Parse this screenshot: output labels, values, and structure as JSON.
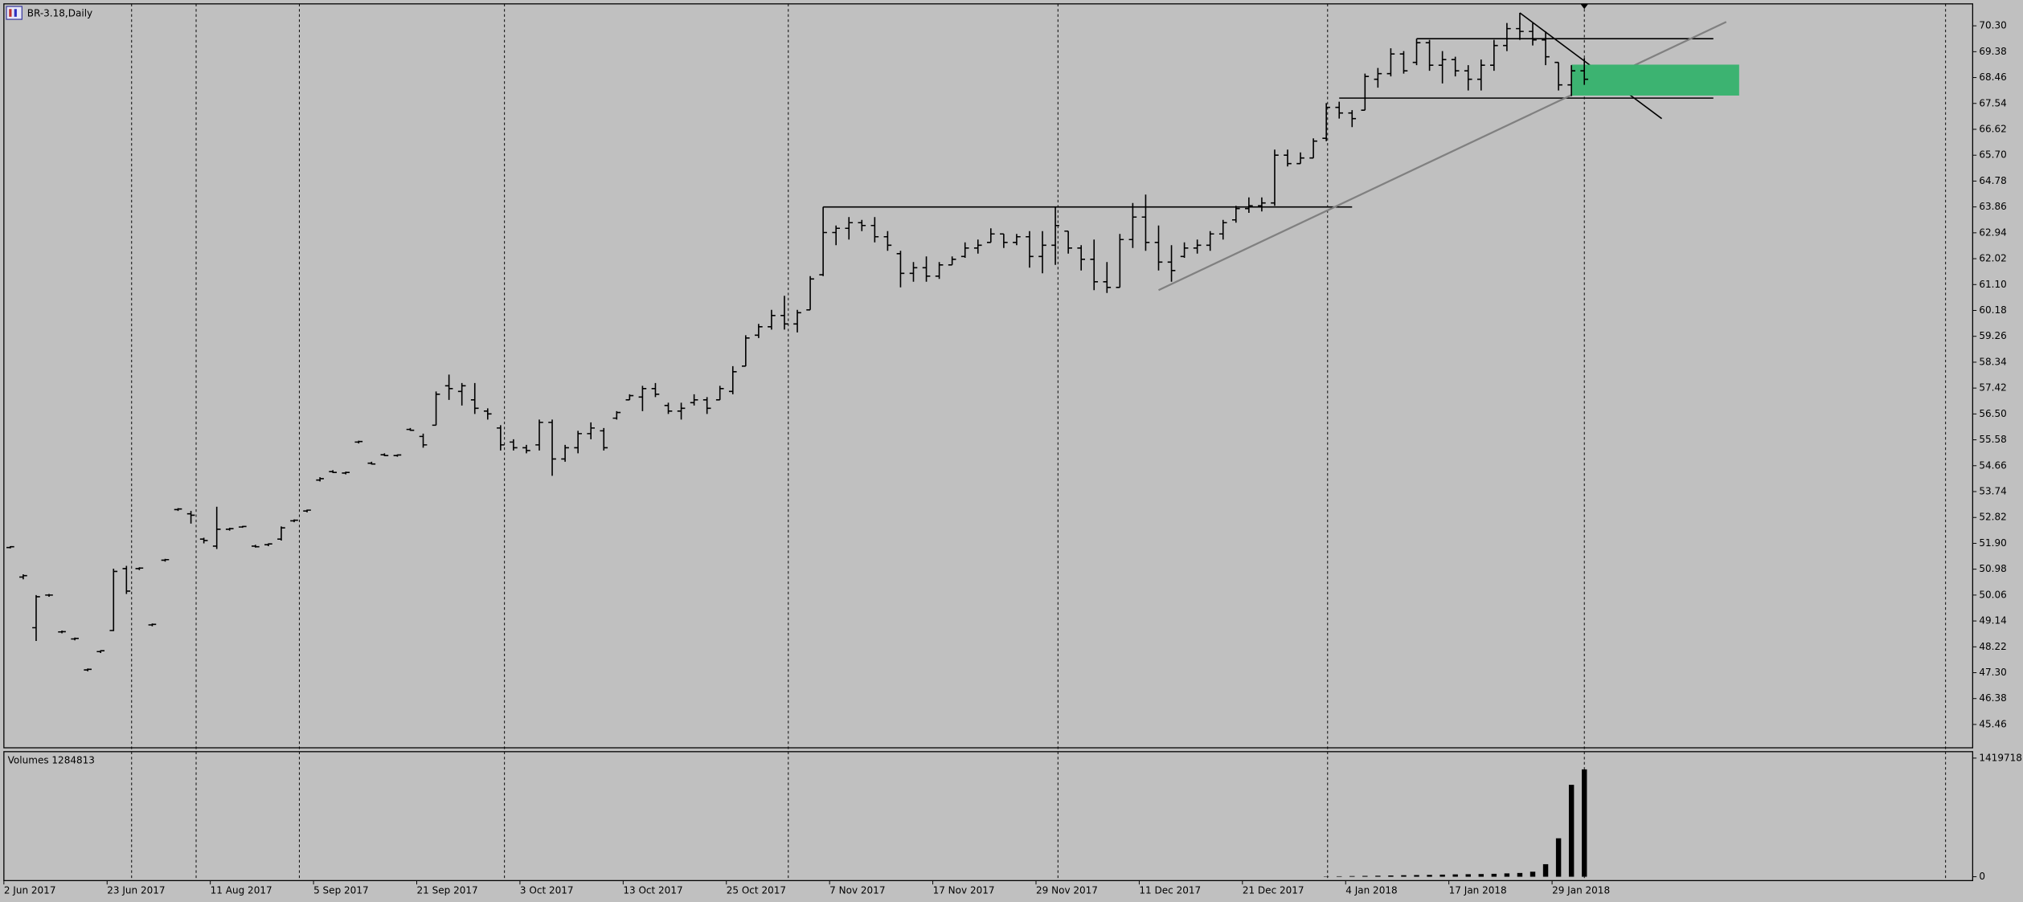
{
  "chart_data": {
    "type": "ohlc",
    "title": "BR-3.18,Daily",
    "color": "#000000",
    "categories": [
      "2 Jun 2017",
      null,
      null,
      null,
      null,
      null,
      null,
      null,
      "23 Jun 2017",
      null,
      null,
      null,
      null,
      null,
      null,
      null,
      "11 Aug 2017",
      null,
      null,
      null,
      null,
      null,
      null,
      null,
      "5 Sep 2017",
      null,
      null,
      null,
      null,
      null,
      null,
      null,
      "21 Sep 2017",
      null,
      null,
      null,
      null,
      null,
      null,
      null,
      "3 Oct 2017",
      null,
      null,
      null,
      null,
      null,
      null,
      null,
      "13 Oct 2017",
      null,
      null,
      null,
      null,
      null,
      null,
      null,
      "25 Oct 2017",
      null,
      null,
      null,
      null,
      null,
      null,
      null,
      "7 Nov 2017",
      null,
      null,
      null,
      null,
      null,
      null,
      null,
      "17 Nov 2017",
      null,
      null,
      null,
      null,
      null,
      null,
      null,
      "29 Nov 2017",
      null,
      null,
      null,
      null,
      null,
      null,
      null,
      "11 Dec 2017",
      null,
      null,
      null,
      null,
      null,
      null,
      null,
      "21 Dec 2017",
      null,
      null,
      null,
      null,
      null,
      null,
      null,
      "4 Jan 2018",
      null,
      null,
      null,
      null,
      null,
      null,
      null,
      "17 Jan 2018",
      null,
      null,
      null,
      null,
      null,
      null,
      null,
      "29 Jan 2018",
      null,
      null
    ],
    "ohlc": [
      [
        51.75,
        51.8,
        51.72,
        51.78
      ],
      [
        50.7,
        50.8,
        50.62,
        50.75
      ],
      [
        48.9,
        50.06,
        48.43,
        50.0
      ],
      [
        50.06,
        50.1,
        50.0,
        50.06
      ],
      [
        48.75,
        48.8,
        48.7,
        48.76
      ],
      [
        48.5,
        48.55,
        48.45,
        48.52
      ],
      [
        47.4,
        47.45,
        47.35,
        47.42
      ],
      [
        48.05,
        48.1,
        48.0,
        48.08
      ],
      [
        48.8,
        51.0,
        48.78,
        50.9
      ],
      [
        51.0,
        51.1,
        50.1,
        50.2
      ],
      [
        51.0,
        51.05,
        50.95,
        51.02
      ],
      [
        49.0,
        49.05,
        48.95,
        49.02
      ],
      [
        51.3,
        51.35,
        51.25,
        51.32
      ],
      [
        53.1,
        53.15,
        53.05,
        53.12
      ],
      [
        52.95,
        53.05,
        52.6,
        52.9
      ],
      [
        52.05,
        52.1,
        51.9,
        52.0
      ],
      [
        51.8,
        53.2,
        51.7,
        52.4
      ],
      [
        52.4,
        52.45,
        52.35,
        52.42
      ],
      [
        52.48,
        52.52,
        52.45,
        52.5
      ],
      [
        51.8,
        51.85,
        51.75,
        51.78
      ],
      [
        51.85,
        51.9,
        51.8,
        51.88
      ],
      [
        52.05,
        52.5,
        52.0,
        52.45
      ],
      [
        52.7,
        52.75,
        52.65,
        52.72
      ],
      [
        53.05,
        53.1,
        53.0,
        53.08
      ],
      [
        54.15,
        54.25,
        54.1,
        54.2
      ],
      [
        54.45,
        54.5,
        54.4,
        54.42
      ],
      [
        54.4,
        54.45,
        54.35,
        54.42
      ],
      [
        55.5,
        55.55,
        55.45,
        55.52
      ],
      [
        54.75,
        54.8,
        54.7,
        54.72
      ],
      [
        55.05,
        55.1,
        55.0,
        55.02
      ],
      [
        55.02,
        55.06,
        54.98,
        55.04
      ],
      [
        55.95,
        56.0,
        55.9,
        55.92
      ],
      [
        55.7,
        55.8,
        55.3,
        55.4
      ],
      [
        56.1,
        57.3,
        56.1,
        57.2
      ],
      [
        57.5,
        57.9,
        57.0,
        57.4
      ],
      [
        57.3,
        57.6,
        56.8,
        57.5
      ],
      [
        57.0,
        57.6,
        56.5,
        56.7
      ],
      [
        56.6,
        56.7,
        56.3,
        56.5
      ],
      [
        56.0,
        56.1,
        55.2,
        55.4
      ],
      [
        55.5,
        55.6,
        55.2,
        55.3
      ],
      [
        55.3,
        55.4,
        55.1,
        55.2
      ],
      [
        55.4,
        56.3,
        55.2,
        56.2
      ],
      [
        56.2,
        56.3,
        54.3,
        54.9
      ],
      [
        54.9,
        55.4,
        54.8,
        55.3
      ],
      [
        55.3,
        55.9,
        55.1,
        55.8
      ],
      [
        55.8,
        56.2,
        55.6,
        56.0
      ],
      [
        55.9,
        56.0,
        55.2,
        55.3
      ],
      [
        56.35,
        56.6,
        56.3,
        56.55
      ],
      [
        57.0,
        57.2,
        57.0,
        57.15
      ],
      [
        57.1,
        57.5,
        56.6,
        57.4
      ],
      [
        57.4,
        57.6,
        57.1,
        57.2
      ],
      [
        56.8,
        56.9,
        56.5,
        56.6
      ],
      [
        56.6,
        56.9,
        56.3,
        56.7
      ],
      [
        56.9,
        57.2,
        56.8,
        57.0
      ],
      [
        57.0,
        57.1,
        56.5,
        56.7
      ],
      [
        57.0,
        57.5,
        57.0,
        57.4
      ],
      [
        57.3,
        58.2,
        57.2,
        58.0
      ],
      [
        58.2,
        59.3,
        58.2,
        59.2
      ],
      [
        59.3,
        59.7,
        59.2,
        59.6
      ],
      [
        59.6,
        60.2,
        59.5,
        60.0
      ],
      [
        60.0,
        60.7,
        59.5,
        59.7
      ],
      [
        59.7,
        60.2,
        59.4,
        60.1
      ],
      [
        60.2,
        61.4,
        60.2,
        61.3
      ],
      [
        61.45,
        63.86,
        61.4,
        62.95
      ],
      [
        62.95,
        63.2,
        62.5,
        63.1
      ],
      [
        63.1,
        63.5,
        62.7,
        63.3
      ],
      [
        63.3,
        63.4,
        63.0,
        63.2
      ],
      [
        63.2,
        63.5,
        62.6,
        62.8
      ],
      [
        62.8,
        63.0,
        62.3,
        62.5
      ],
      [
        62.2,
        62.3,
        61.0,
        61.5
      ],
      [
        61.5,
        61.9,
        61.2,
        61.7
      ],
      [
        61.7,
        62.1,
        61.2,
        61.4
      ],
      [
        61.4,
        61.9,
        61.3,
        61.8
      ],
      [
        61.8,
        62.1,
        61.8,
        62.0
      ],
      [
        62.1,
        62.6,
        62.05,
        62.4
      ],
      [
        62.4,
        62.7,
        62.2,
        62.5
      ],
      [
        62.6,
        63.1,
        62.6,
        62.9
      ],
      [
        62.9,
        62.9,
        62.4,
        62.6
      ],
      [
        62.6,
        62.9,
        62.5,
        62.8
      ],
      [
        62.8,
        63.0,
        61.7,
        62.1
      ],
      [
        62.1,
        63.0,
        61.5,
        62.5
      ],
      [
        62.5,
        63.86,
        61.8,
        63.2
      ],
      [
        63.0,
        63.0,
        62.2,
        62.4
      ],
      [
        62.4,
        62.5,
        61.6,
        62.0
      ],
      [
        62.0,
        62.7,
        60.9,
        61.2
      ],
      [
        61.2,
        61.9,
        60.8,
        61.0
      ],
      [
        61.0,
        62.9,
        61.0,
        62.7
      ],
      [
        62.7,
        64.0,
        62.4,
        63.5
      ],
      [
        63.5,
        64.3,
        62.3,
        62.6
      ],
      [
        62.6,
        63.2,
        61.6,
        61.9
      ],
      [
        61.9,
        62.5,
        61.2,
        61.6
      ],
      [
        62.1,
        62.6,
        62.05,
        62.4
      ],
      [
        62.4,
        62.7,
        62.2,
        62.5
      ],
      [
        62.5,
        63.0,
        62.3,
        62.9
      ],
      [
        62.9,
        63.4,
        62.7,
        63.3
      ],
      [
        63.4,
        63.9,
        63.3,
        63.8
      ],
      [
        63.8,
        64.2,
        63.65,
        63.9
      ],
      [
        63.9,
        64.2,
        63.7,
        64.0
      ],
      [
        64.0,
        65.9,
        63.9,
        65.7
      ],
      [
        65.7,
        65.9,
        65.3,
        65.4
      ],
      [
        65.4,
        65.8,
        65.4,
        65.6
      ],
      [
        65.6,
        66.3,
        65.6,
        66.2
      ],
      [
        66.3,
        67.55,
        66.2,
        67.4
      ],
      [
        67.4,
        67.6,
        67.0,
        67.2
      ],
      [
        67.2,
        67.3,
        66.7,
        67.0
      ],
      [
        67.3,
        68.6,
        67.3,
        68.5
      ],
      [
        68.4,
        68.8,
        68.1,
        68.6
      ],
      [
        68.6,
        69.5,
        68.5,
        69.3
      ],
      [
        69.3,
        69.4,
        68.6,
        68.7
      ],
      [
        69.0,
        69.84,
        68.9,
        69.7
      ],
      [
        69.7,
        69.8,
        68.7,
        68.9
      ],
      [
        68.9,
        69.4,
        68.25,
        69.1
      ],
      [
        69.1,
        69.2,
        68.5,
        68.7
      ],
      [
        68.7,
        68.9,
        68.0,
        68.4
      ],
      [
        68.4,
        69.1,
        68.0,
        68.9
      ],
      [
        68.9,
        69.8,
        68.7,
        69.6
      ],
      [
        69.6,
        70.4,
        69.4,
        70.2
      ],
      [
        70.2,
        70.76,
        69.8,
        70.1
      ],
      [
        70.1,
        70.4,
        69.6,
        69.8
      ],
      [
        69.8,
        70.1,
        68.9,
        69.2
      ],
      [
        69.0,
        69.0,
        68.0,
        68.2
      ],
      [
        68.2,
        68.9,
        67.8,
        68.7
      ],
      [
        68.7,
        69.15,
        68.2,
        68.4
      ]
    ],
    "ylim": [
      44.63,
      71.08
    ],
    "yticks": [
      45.46,
      46.38,
      {
        "value": 47.3,
        "label": "47.30"
      },
      48.22,
      49.14,
      50.06,
      50.98,
      {
        "value": 51.9,
        "label": "51.90"
      },
      52.82,
      53.74,
      54.66,
      55.58,
      {
        "value": 56.5,
        "label": "56.50"
      },
      57.42,
      58.34,
      59.26,
      60.18,
      {
        "value": 61.1,
        "label": "61.10"
      },
      62.02,
      62.94,
      63.86,
      64.78,
      {
        "value": 65.7,
        "label": "65.70"
      },
      66.62,
      67.54,
      68.46,
      69.38,
      {
        "value": 70.3,
        "label": "70.30"
      }
    ],
    "drawings": [
      {
        "kind": "segment",
        "color": "#000000",
        "from": [
          63,
          63.86
        ],
        "to": [
          104,
          63.86
        ]
      },
      {
        "kind": "segment",
        "color": "#000000",
        "from": [
          109,
          69.84
        ],
        "to": [
          132,
          69.84
        ]
      },
      {
        "kind": "segment",
        "color": "#000000",
        "from": [
          103,
          67.73
        ],
        "to": [
          132,
          67.73
        ]
      },
      {
        "kind": "segment",
        "color": "#808080",
        "from": [
          89,
          60.9
        ],
        "to": [
          133,
          70.44
        ]
      },
      {
        "kind": "segment",
        "color": "#000000",
        "from": [
          117,
          70.76
        ],
        "to": [
          128,
          67.0
        ]
      },
      {
        "kind": "rect",
        "color": "#3cb371",
        "from": [
          121,
          68.92
        ],
        "to": [
          134,
          67.82
        ]
      }
    ],
    "volume": {
      "label": "Volumes 1284813",
      "color": "#000000",
      "values": [
        0,
        0,
        0,
        0,
        0,
        0,
        0,
        0,
        0,
        0,
        0,
        0,
        0,
        0,
        0,
        0,
        0,
        0,
        0,
        0,
        0,
        0,
        0,
        0,
        0,
        0,
        0,
        0,
        0,
        0,
        0,
        0,
        0,
        0,
        0,
        0,
        0,
        0,
        0,
        0,
        0,
        0,
        0,
        0,
        0,
        0,
        0,
        0,
        0,
        0,
        0,
        0,
        0,
        0,
        0,
        0,
        0,
        0,
        0,
        0,
        0,
        0,
        0,
        0,
        0,
        0,
        0,
        0,
        0,
        0,
        0,
        0,
        0,
        0,
        0,
        0,
        0,
        0,
        0,
        0,
        0,
        0,
        0,
        0,
        0,
        0,
        0,
        0,
        0,
        0,
        0,
        0,
        0,
        0,
        0,
        0,
        0,
        0,
        0,
        0,
        0,
        0,
        4000,
        6000,
        8000,
        10000,
        12000,
        15000,
        18000,
        20000,
        22000,
        25000,
        28000,
        30000,
        32000,
        35000,
        40000,
        45000,
        60000,
        150000,
        460000,
        1100000,
        1284813
      ],
      "ylim": [
        0,
        1481444
      ],
      "yticks": [
        0,
        1419718
      ]
    }
  }
}
